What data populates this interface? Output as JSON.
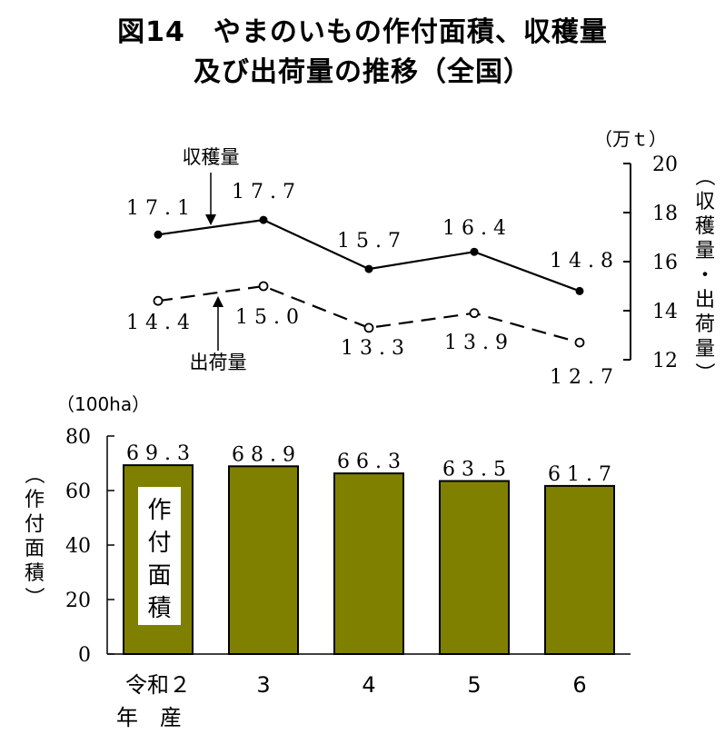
{
  "title_line1": "図14　やまのいもの作付面積、収穫量",
  "title_line2": "及び出荷量の推移（全国）",
  "chart_data": [
    {
      "type": "line",
      "unit": "（万ｔ）",
      "ylabel": "（収穫量・出荷量）",
      "ylim": [
        12,
        20
      ],
      "yticks": [
        12,
        14,
        16,
        18,
        20
      ],
      "categories": [
        "令和２年産",
        "3",
        "4",
        "5",
        "6"
      ],
      "series": [
        {
          "name": "収穫量",
          "values": [
            17.1,
            17.7,
            15.7,
            16.4,
            14.8
          ],
          "labels": [
            "17.1",
            "17.7",
            "15.7",
            "16.4",
            "14.8"
          ],
          "style": "solid",
          "marker": "filled"
        },
        {
          "name": "出荷量",
          "values": [
            14.4,
            15.0,
            13.3,
            13.9,
            12.7
          ],
          "labels": [
            "14.4",
            "15.0",
            "13.3",
            "13.9",
            "12.7"
          ],
          "style": "dashed",
          "marker": "open"
        }
      ]
    },
    {
      "type": "bar",
      "unit": "（100ha）",
      "ylabel": "（作付面積）",
      "ylim": [
        0,
        80
      ],
      "yticks": [
        0,
        20,
        40,
        60,
        80
      ],
      "categories": [
        "令和２年産",
        "3",
        "4",
        "5",
        "6"
      ],
      "xtick_line1": [
        "令和２",
        "3",
        "4",
        "5",
        "6"
      ],
      "xtick_line2": "年　産",
      "values": [
        69.3,
        68.9,
        66.3,
        63.5,
        61.7
      ],
      "labels": [
        "69.3",
        "68.9",
        "66.3",
        "63.5",
        "61.7"
      ],
      "series_name": "作付面積",
      "color": "#808000"
    }
  ]
}
